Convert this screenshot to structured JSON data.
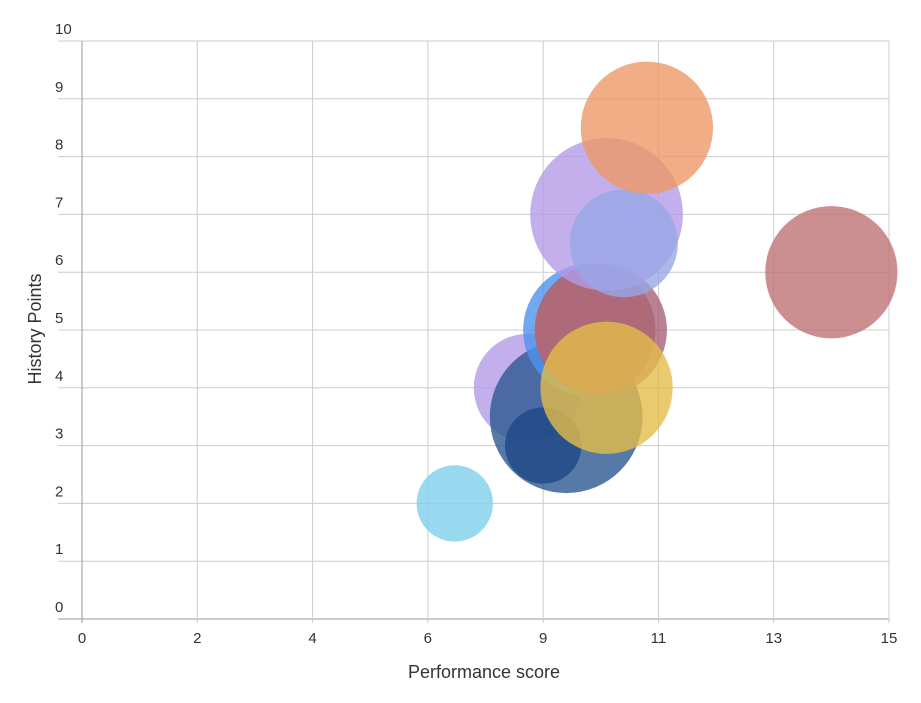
{
  "chart_data": {
    "type": "bubble",
    "title": "",
    "xlabel": "Performance score",
    "ylabel": "History Points",
    "x_ticks": [
      "0",
      "2",
      "4",
      "6",
      "9",
      "11",
      "13",
      "15"
    ],
    "y_ticks": [
      "0",
      "1",
      "2",
      "3",
      "4",
      "5",
      "6",
      "7",
      "8",
      "9",
      "10"
    ],
    "xlim": [
      0,
      15
    ],
    "ylim": [
      0,
      10
    ],
    "grid": true,
    "legend": "none",
    "points": [
      {
        "x": 6.7,
        "y": 2.0,
        "size": 2,
        "color": "#7fd0ec"
      },
      {
        "x": 8.6,
        "y": 4.0,
        "size": 4,
        "color": "#b39be6"
      },
      {
        "x": 9.4,
        "y": 3.5,
        "size": 8,
        "color": "#2d5791"
      },
      {
        "x": 9.0,
        "y": 3.0,
        "size": 2,
        "color": "#1e4887"
      },
      {
        "x": 9.8,
        "y": 5.0,
        "size": 6,
        "color": "#4c94ec"
      },
      {
        "x": 9.9,
        "y": 5.0,
        "size": 5,
        "color": "#e6875a"
      },
      {
        "x": 10.0,
        "y": 5.0,
        "size": 6,
        "color": "#a66279"
      },
      {
        "x": 10.1,
        "y": 4.0,
        "size": 6,
        "color": "#e3bd4a"
      },
      {
        "x": 10.1,
        "y": 7.0,
        "size": 8,
        "color": "#b39be6"
      },
      {
        "x": 10.4,
        "y": 6.5,
        "size": 4,
        "color": "#99a6e6"
      },
      {
        "x": 10.8,
        "y": 8.5,
        "size": 6,
        "color": "#ee9868"
      },
      {
        "x": 14.0,
        "y": 6.0,
        "size": 6,
        "color": "#bf7376"
      }
    ]
  }
}
